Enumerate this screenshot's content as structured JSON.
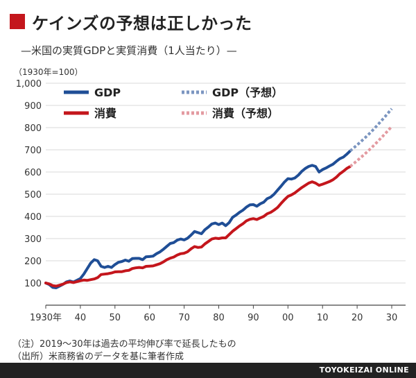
{
  "header": {
    "title": "ケインズの予想は正しかった",
    "subtitle": "—米国の実質GDPと実質消費（1人当たり）—"
  },
  "unit_note": "（1930年=100）",
  "footnotes": {
    "note": "（注）2019〜30年は過去の平均伸び率で延長したもの",
    "source": "（出所）米商務省のデータを基に筆者作成"
  },
  "credit": "TOYOKEIZAI ONLINE",
  "colors": {
    "title_square": "#c4161c",
    "gdp": "#1f4e96",
    "consumption": "#c4161c",
    "gdp_forecast": "#7b95c0",
    "consumption_forecast": "#e39aa0",
    "grid": "#d9d9d9",
    "credit_bar": "#222222"
  },
  "chart_data": {
    "type": "line",
    "title": "ケインズの予想は正しかった",
    "xlim": [
      1930,
      2030
    ],
    "ylim": [
      0,
      1000
    ],
    "x_ticks": [
      {
        "value": 1930,
        "label": "1930年"
      },
      {
        "value": 1940,
        "label": "40"
      },
      {
        "value": 1950,
        "label": "50"
      },
      {
        "value": 1960,
        "label": "60"
      },
      {
        "value": 1970,
        "label": "70"
      },
      {
        "value": 1980,
        "label": "80"
      },
      {
        "value": 1990,
        "label": "90"
      },
      {
        "value": 2000,
        "label": "00"
      },
      {
        "value": 2010,
        "label": "10"
      },
      {
        "value": 2020,
        "label": "20"
      },
      {
        "value": 2030,
        "label": "30"
      }
    ],
    "y_ticks": [
      {
        "value": 0,
        "label": ""
      },
      {
        "value": 100,
        "label": "100"
      },
      {
        "value": 200,
        "label": "200"
      },
      {
        "value": 300,
        "label": "300"
      },
      {
        "value": 400,
        "label": "400"
      },
      {
        "value": 500,
        "label": "500"
      },
      {
        "value": 600,
        "label": "600"
      },
      {
        "value": 700,
        "label": "700"
      },
      {
        "value": 800,
        "label": "800"
      },
      {
        "value": 900,
        "label": "900"
      },
      {
        "value": 1000,
        "label": "1,000"
      }
    ],
    "grid": "horizontal",
    "legend_position": "top-left",
    "series": [
      {
        "name": "GDP",
        "style": "solid",
        "x": [
          1930,
          1931,
          1932,
          1933,
          1934,
          1935,
          1936,
          1937,
          1938,
          1939,
          1940,
          1941,
          1942,
          1943,
          1944,
          1945,
          1946,
          1947,
          1948,
          1949,
          1950,
          1951,
          1952,
          1953,
          1954,
          1955,
          1956,
          1957,
          1958,
          1959,
          1960,
          1961,
          1962,
          1963,
          1964,
          1965,
          1966,
          1967,
          1968,
          1969,
          1970,
          1971,
          1972,
          1973,
          1974,
          1975,
          1976,
          1977,
          1978,
          1979,
          1980,
          1981,
          1982,
          1983,
          1984,
          1985,
          1986,
          1987,
          1988,
          1989,
          1990,
          1991,
          1992,
          1993,
          1994,
          1995,
          1996,
          1997,
          1998,
          1999,
          2000,
          2001,
          2002,
          2003,
          2004,
          2005,
          2006,
          2007,
          2008,
          2009,
          2010,
          2011,
          2012,
          2013,
          2014,
          2015,
          2016,
          2017,
          2018
        ],
        "values": [
          100,
          93,
          80,
          78,
          86,
          94,
          105,
          109,
          104,
          112,
          120,
          140,
          165,
          190,
          205,
          200,
          175,
          170,
          175,
          170,
          183,
          193,
          197,
          203,
          198,
          210,
          211,
          211,
          205,
          218,
          219,
          221,
          232,
          240,
          252,
          265,
          278,
          282,
          293,
          298,
          294,
          302,
          316,
          332,
          327,
          322,
          340,
          352,
          366,
          370,
          363,
          370,
          358,
          372,
          396,
          406,
          418,
          428,
          442,
          452,
          453,
          446,
          457,
          464,
          480,
          487,
          500,
          518,
          536,
          555,
          570,
          568,
          573,
          586,
          603,
          616,
          625,
          630,
          625,
          600,
          611,
          618,
          627,
          635,
          648,
          660,
          667,
          680,
          695
        ]
      },
      {
        "name": "消費",
        "style": "solid",
        "x": [
          1930,
          1931,
          1932,
          1933,
          1934,
          1935,
          1936,
          1937,
          1938,
          1939,
          1940,
          1941,
          1942,
          1943,
          1944,
          1945,
          1946,
          1947,
          1948,
          1949,
          1950,
          1951,
          1952,
          1953,
          1954,
          1955,
          1956,
          1957,
          1958,
          1959,
          1960,
          1961,
          1962,
          1963,
          1964,
          1965,
          1966,
          1967,
          1968,
          1969,
          1970,
          1971,
          1972,
          1973,
          1974,
          1975,
          1976,
          1977,
          1978,
          1979,
          1980,
          1981,
          1982,
          1983,
          1984,
          1985,
          1986,
          1987,
          1988,
          1989,
          1990,
          1991,
          1992,
          1993,
          1994,
          1995,
          1996,
          1997,
          1998,
          1999,
          2000,
          2001,
          2002,
          2003,
          2004,
          2005,
          2006,
          2007,
          2008,
          2009,
          2010,
          2011,
          2012,
          2013,
          2014,
          2015,
          2016,
          2017,
          2018
        ],
        "values": [
          100,
          96,
          88,
          86,
          90,
          95,
          102,
          105,
          102,
          106,
          110,
          113,
          112,
          115,
          118,
          124,
          138,
          140,
          142,
          145,
          150,
          151,
          151,
          155,
          157,
          165,
          168,
          170,
          168,
          175,
          176,
          177,
          182,
          187,
          195,
          205,
          212,
          217,
          226,
          232,
          234,
          241,
          254,
          264,
          260,
          262,
          276,
          287,
          298,
          302,
          300,
          303,
          303,
          318,
          333,
          345,
          357,
          367,
          380,
          387,
          390,
          386,
          393,
          400,
          412,
          418,
          428,
          440,
          458,
          475,
          490,
          497,
          506,
          518,
          530,
          540,
          550,
          556,
          550,
          540,
          545,
          551,
          557,
          565,
          577,
          592,
          603,
          616,
          625
        ]
      },
      {
        "name": "GDP（予想）",
        "style": "dotted",
        "x": [
          2018,
          2020,
          2022,
          2024,
          2026,
          2028,
          2030
        ],
        "values": [
          695,
          722,
          750,
          780,
          813,
          848,
          885
        ]
      },
      {
        "name": "消費（予想）",
        "style": "dotted",
        "x": [
          2018,
          2020,
          2022,
          2024,
          2026,
          2028,
          2030
        ],
        "values": [
          625,
          651,
          678,
          707,
          738,
          771,
          805
        ]
      }
    ]
  }
}
